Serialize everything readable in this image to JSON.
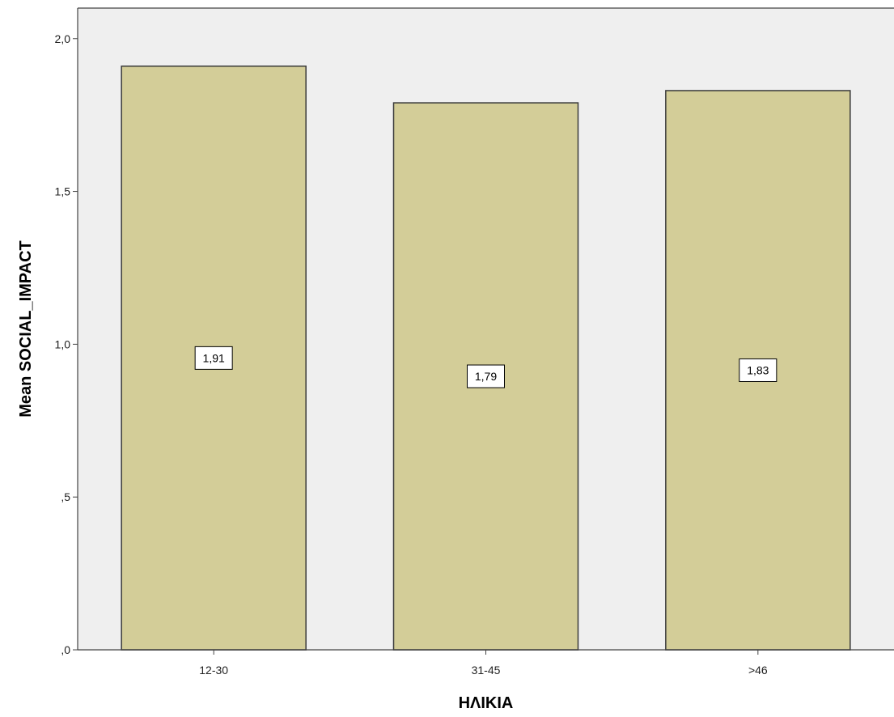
{
  "chart_data": {
    "type": "bar",
    "title": "",
    "xlabel": "ΗΛΙΚΙΑ",
    "ylabel": "Mean SOCIAL_IMPACT",
    "categories": [
      "12-30",
      "31-45",
      ">46"
    ],
    "values": [
      1.91,
      1.79,
      1.83
    ],
    "data_labels": [
      "1,91",
      "1,79",
      "1,83"
    ],
    "ylim": [
      0,
      2.1
    ],
    "yticks": [
      {
        "value": 0,
        "label": ",0"
      },
      {
        "value": 0.5,
        "label": ",5"
      },
      {
        "value": 1.0,
        "label": "1,0"
      },
      {
        "value": 1.5,
        "label": "1,5"
      },
      {
        "value": 2.0,
        "label": "2,0"
      }
    ],
    "grid": false,
    "legend": "none",
    "colors": {
      "plot_background": "#efefef",
      "bar_fill": "#d3cd98",
      "bar_stroke": "#3a3a3a",
      "axis": "#444444"
    }
  }
}
